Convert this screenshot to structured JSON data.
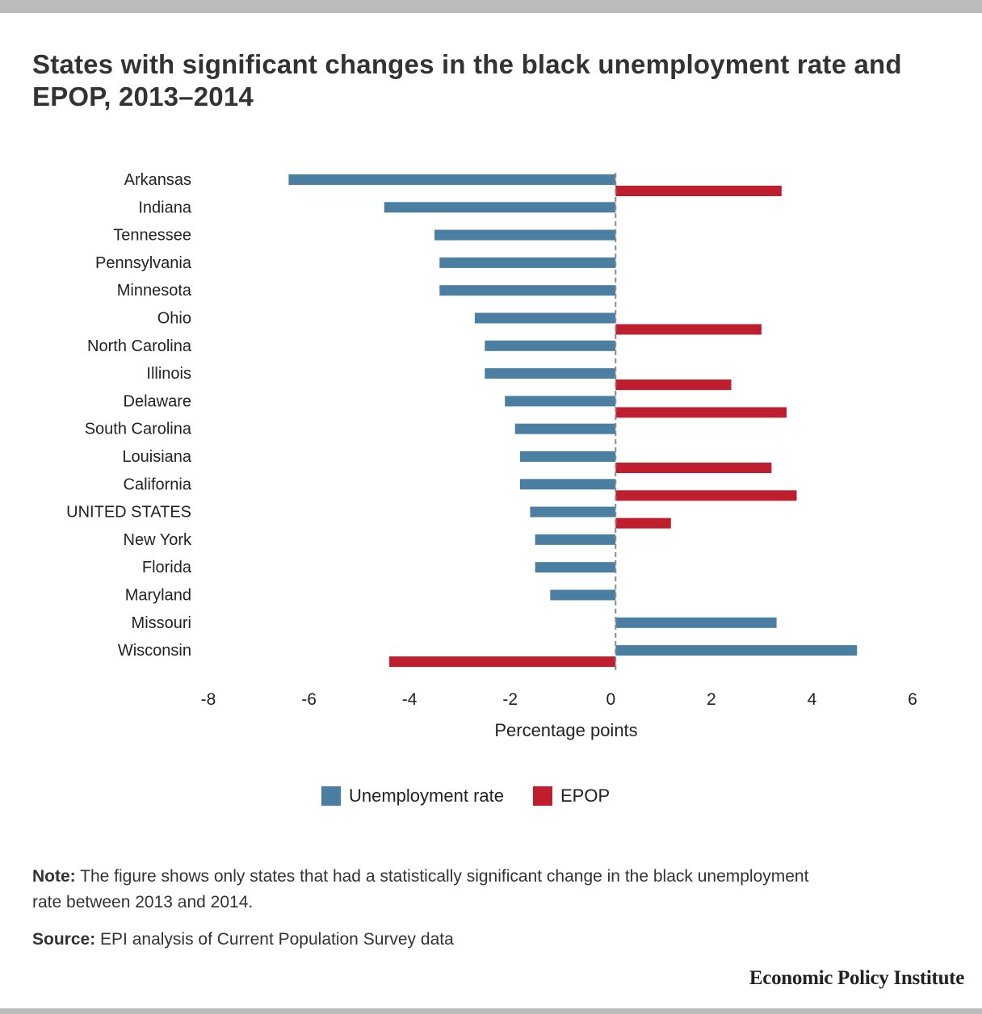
{
  "title": "States with significant changes in the black unemployment rate and EPOP, 2013–2014",
  "legend": [
    {
      "label": "Unemployment rate",
      "color": "#4a7fa2"
    },
    {
      "label": "EPOP",
      "color": "#be1e2d"
    }
  ],
  "note_label": "Note:",
  "note_text": " The figure shows only states that had a statistically significant change in the black unemployment rate between 2013 and 2014.",
  "source_label": "Source:",
  "source_text": " EPI analysis of Current Population Survey data",
  "brand": "Economic Policy Institute",
  "chart_data": {
    "type": "bar",
    "orientation": "horizontal",
    "title": "States with significant changes in the black unemployment rate and EPOP, 2013–2014",
    "xlabel": "Percentage points",
    "ylabel": "",
    "xlim": [
      -8,
      6
    ],
    "xticks": [
      -8,
      -6,
      -4,
      -2,
      0,
      2,
      4,
      6
    ],
    "xtick_labels": [
      "-8",
      "-6",
      "-4",
      "-2",
      "0",
      "2",
      "4",
      "6"
    ],
    "grid": false,
    "zero_line": "dashed",
    "legend_position": "bottom-center",
    "categories": [
      "Arkansas",
      "Indiana",
      "Tennessee",
      "Pennsylvania",
      "Minnesota",
      "Ohio",
      "North Carolina",
      "Illinois",
      "Delaware",
      "South Carolina",
      "Louisiana",
      "California",
      "UNITED STATES",
      "New York",
      "Florida",
      "Maryland",
      "Missouri",
      "Wisconsin"
    ],
    "series": [
      {
        "name": "Unemployment rate",
        "color": "#4a7fa2",
        "values": [
          -6.5,
          -4.6,
          -3.6,
          -3.5,
          -3.5,
          -2.8,
          -2.6,
          -2.6,
          -2.2,
          -2.0,
          -1.9,
          -1.9,
          -1.7,
          -1.6,
          -1.6,
          -1.3,
          3.2,
          4.8
        ]
      },
      {
        "name": "EPOP",
        "color": "#be1e2d",
        "values": [
          3.3,
          null,
          null,
          null,
          null,
          2.9,
          null,
          2.3,
          3.4,
          null,
          3.1,
          3.6,
          1.1,
          null,
          null,
          null,
          null,
          -4.5
        ]
      }
    ]
  }
}
